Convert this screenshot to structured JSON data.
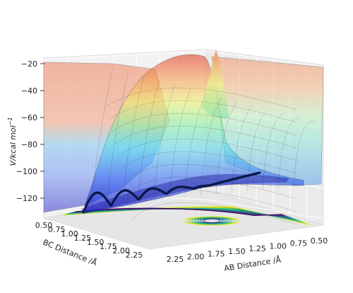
{
  "chart_data": {
    "type": "surface3d",
    "z_axis": {
      "label": "V/kcal mol",
      "label_exponent": "−1",
      "ticks": [
        "−20",
        "−40",
        "−60",
        "−80",
        "−100",
        "−120"
      ],
      "range": [
        -135,
        -20
      ]
    },
    "x_axis": {
      "label": "AB Distance /Å",
      "ticks": [
        "2.25",
        "2.00",
        "1.75",
        "1.50",
        "1.25",
        "1.00",
        "0.75",
        "0.50"
      ],
      "range": [
        0.5,
        2.4
      ]
    },
    "y_axis": {
      "label": "BC Distance /Å",
      "ticks": [
        "0.50",
        "0.75",
        "1.00",
        "1.25",
        "1.50",
        "1.75",
        "2.00",
        "2.25"
      ],
      "range": [
        0.5,
        2.4
      ]
    },
    "colormap_surface": "jet (alpha)",
    "colormap_contour": "viridis",
    "trajectory_color": "#0a1a4a",
    "trajectory": {
      "description_note": "",
      "bc_distance": [
        0.75,
        0.72,
        0.7,
        0.68,
        0.7,
        0.74,
        0.78,
        0.82,
        0.86,
        0.9,
        0.95,
        1.0,
        1.05,
        1.1,
        1.15,
        1.2,
        1.3,
        1.4,
        1.5,
        1.6,
        1.7,
        1.8,
        1.9,
        2.0,
        2.1
      ],
      "ab_distance": [
        2.3,
        2.25,
        2.2,
        2.15,
        2.1,
        2.05,
        2.0,
        1.95,
        1.9,
        1.85,
        1.8,
        1.75,
        1.7,
        1.65,
        1.6,
        1.55,
        1.5,
        1.45,
        1.4,
        1.35,
        1.3,
        1.25,
        1.2,
        1.15,
        1.1
      ]
    },
    "grid": true
  }
}
